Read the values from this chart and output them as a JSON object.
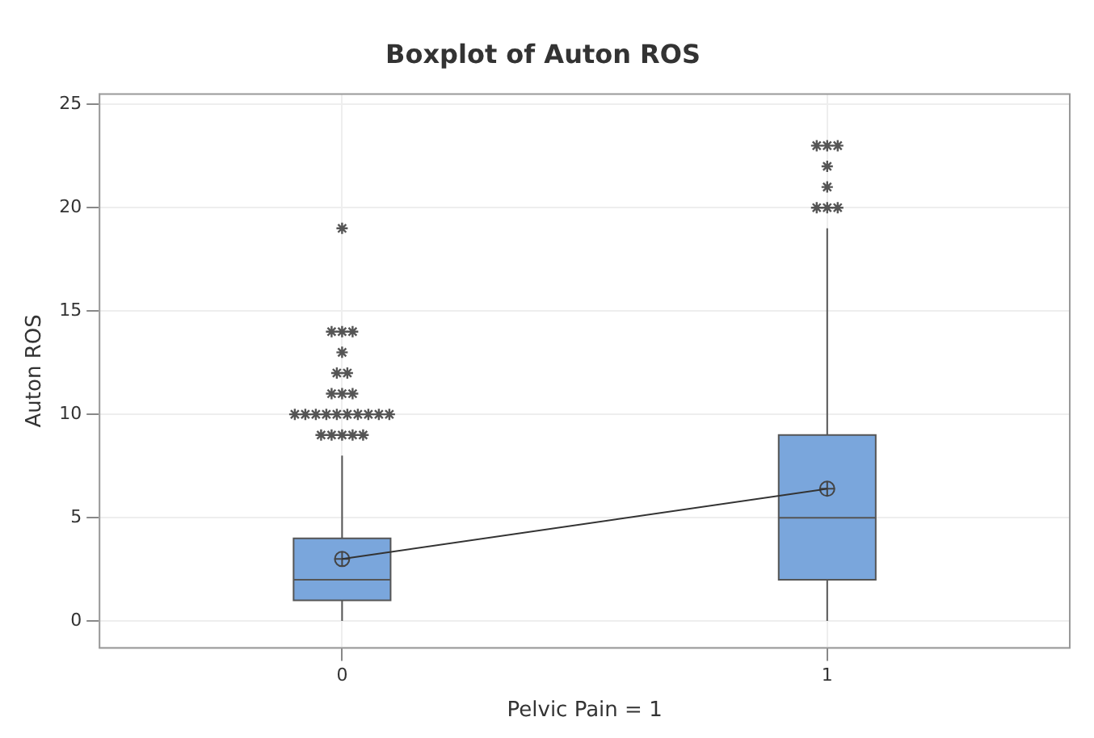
{
  "chart_data": {
    "type": "box",
    "title": "Boxplot of Auton ROS",
    "xlabel": "Pelvic Pain = 1",
    "ylabel": "Auton ROS",
    "categories": [
      "0",
      "1"
    ],
    "color": "#7aa6dc",
    "boxes": [
      {
        "low": 0,
        "q1": 1,
        "median": 2,
        "q3": 4,
        "high": 8,
        "mean": 3,
        "outliers": [
          9,
          9,
          9,
          9,
          9,
          10,
          10,
          10,
          10,
          10,
          10,
          10,
          10,
          10,
          10,
          11,
          11,
          11,
          12,
          12,
          13,
          14,
          14,
          14,
          19
        ]
      },
      {
        "low": 0,
        "q1": 2,
        "median": 5,
        "q3": 9,
        "high": 19,
        "mean": 6.4,
        "outliers": [
          20,
          20,
          20,
          21,
          22,
          23,
          23,
          23
        ]
      }
    ],
    "series": [
      {
        "type": "line",
        "color": "#333333",
        "values": [
          3,
          6.4
        ],
        "marker": "none"
      }
    ],
    "ylim": [
      -1.3,
      25.5
    ],
    "yticks": [
      0,
      5,
      10,
      15,
      20,
      25
    ],
    "grid": true,
    "marker": "star",
    "legend": false
  }
}
